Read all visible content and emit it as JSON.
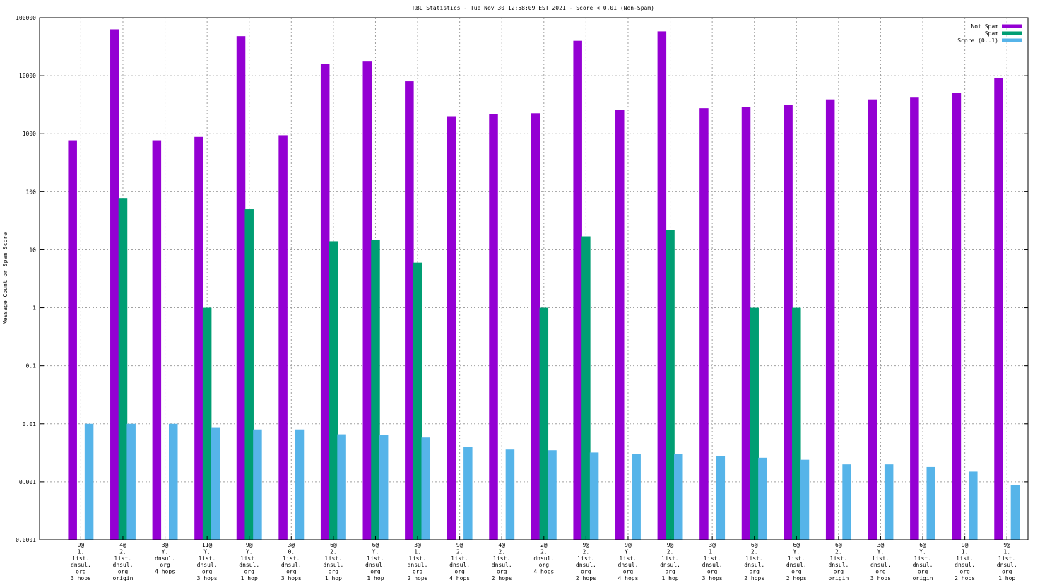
{
  "chart_data": {
    "type": "bar",
    "title": "RBL Statistics - Tue Nov 30 12:58:09 EST 2021 - Score < 0.01 (Non-Spam)",
    "xlabel": "",
    "ylabel": "Message Count or Spam Score",
    "yscale": "log",
    "ylim": [
      0.0001,
      100000
    ],
    "yticks": [
      {
        "value": 0.0001,
        "label": "0.0001"
      },
      {
        "value": 0.001,
        "label": "0.001"
      },
      {
        "value": 0.01,
        "label": "0.01"
      },
      {
        "value": 0.1,
        "label": "0.1"
      },
      {
        "value": 1,
        "label": "1"
      },
      {
        "value": 10,
        "label": "10"
      },
      {
        "value": 100,
        "label": "100"
      },
      {
        "value": 1000,
        "label": "1000"
      },
      {
        "value": 10000,
        "label": "10000"
      },
      {
        "value": 100000,
        "label": "100000"
      }
    ],
    "grid": true,
    "legend_position": "top-right",
    "categories": [
      [
        "9@",
        "1.",
        "list.",
        "dnsul.",
        "org",
        "3 hops"
      ],
      [
        "4@",
        "2.",
        "list.",
        "dnsul.",
        "org",
        "origin"
      ],
      [
        "3@",
        "Y.",
        "dnsul.",
        "org",
        "4 hops"
      ],
      [
        "11@",
        "Y.",
        "list.",
        "dnsul.",
        "org",
        "3 hops"
      ],
      [
        "9@",
        "Y.",
        "list.",
        "dnsul.",
        "org",
        "1 hop"
      ],
      [
        "3@",
        "0.",
        "list.",
        "dnsul.",
        "org",
        "3 hops"
      ],
      [
        "6@",
        "2.",
        "list.",
        "dnsul.",
        "org",
        "1 hop"
      ],
      [
        "6@",
        "Y.",
        "list.",
        "dnsul.",
        "org",
        "1 hop"
      ],
      [
        "3@",
        "1.",
        "list.",
        "dnsul.",
        "org",
        "2 hops"
      ],
      [
        "9@",
        "2.",
        "list.",
        "dnsul.",
        "org",
        "4 hops"
      ],
      [
        "4@",
        "2.",
        "list.",
        "dnsul.",
        "org",
        "2 hops"
      ],
      [
        "2@",
        "2.",
        "dnsul.",
        "org",
        "4 hops"
      ],
      [
        "9@",
        "2.",
        "list.",
        "dnsul.",
        "org",
        "2 hops"
      ],
      [
        "9@",
        "Y.",
        "list.",
        "dnsul.",
        "org",
        "4 hops"
      ],
      [
        "9@",
        "2.",
        "list.",
        "dnsul.",
        "org",
        "1 hop"
      ],
      [
        "3@",
        "1.",
        "list.",
        "dnsul.",
        "org",
        "3 hops"
      ],
      [
        "6@",
        "2.",
        "list.",
        "dnsul.",
        "org",
        "2 hops"
      ],
      [
        "6@",
        "Y.",
        "list.",
        "dnsul.",
        "org",
        "2 hops"
      ],
      [
        "6@",
        "2.",
        "list.",
        "dnsul.",
        "org",
        "origin"
      ],
      [
        "3@",
        "Y.",
        "list.",
        "dnsul.",
        "org",
        "3 hops"
      ],
      [
        "6@",
        "Y.",
        "list.",
        "dnsul.",
        "org",
        "origin"
      ],
      [
        "9@",
        "1.",
        "list.",
        "dnsul.",
        "org",
        "2 hops"
      ],
      [
        "9@",
        "1.",
        "list.",
        "dnsul.",
        "org",
        "1 hop"
      ]
    ],
    "series": [
      {
        "name": "Not Spam",
        "color": "#9400d3",
        "values": [
          770,
          63000,
          770,
          880,
          48000,
          940,
          16000,
          17500,
          8000,
          2000,
          2150,
          2250,
          40000,
          2550,
          58000,
          2750,
          2900,
          3150,
          3900,
          3900,
          4300,
          5100,
          9000
        ]
      },
      {
        "name": "Spam",
        "color": "#009e73",
        "values": [
          null,
          78,
          null,
          1,
          50,
          null,
          14,
          15,
          6,
          null,
          null,
          1,
          17,
          null,
          22,
          null,
          1,
          1,
          null,
          null,
          null,
          null,
          null
        ]
      },
      {
        "name": "Score (0..1)",
        "color": "#56b4e9",
        "values": [
          0.01,
          0.01,
          0.01,
          0.0085,
          0.008,
          0.008,
          0.0066,
          0.0064,
          0.0058,
          0.004,
          0.0036,
          0.0035,
          0.0032,
          0.003,
          0.003,
          0.0028,
          0.0026,
          0.0024,
          0.002,
          0.002,
          0.0018,
          0.0015,
          0.00087
        ]
      }
    ]
  }
}
